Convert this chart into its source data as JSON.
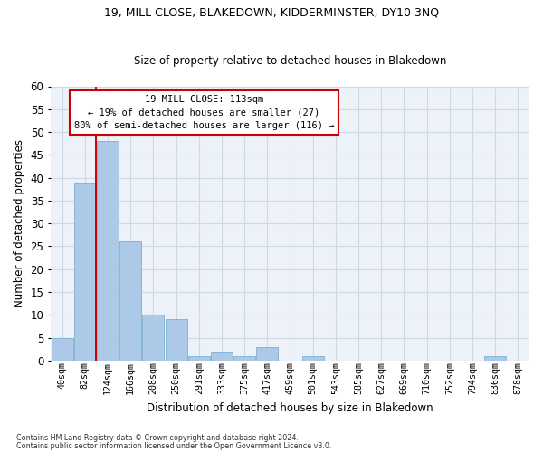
{
  "title1": "19, MILL CLOSE, BLAKEDOWN, KIDDERMINSTER, DY10 3NQ",
  "title2": "Size of property relative to detached houses in Blakedown",
  "xlabel": "Distribution of detached houses by size in Blakedown",
  "ylabel": "Number of detached properties",
  "bin_labels": [
    "40sqm",
    "82sqm",
    "124sqm",
    "166sqm",
    "208sqm",
    "250sqm",
    "291sqm",
    "333sqm",
    "375sqm",
    "417sqm",
    "459sqm",
    "501sqm",
    "543sqm",
    "585sqm",
    "627sqm",
    "669sqm",
    "710sqm",
    "752sqm",
    "794sqm",
    "836sqm",
    "878sqm"
  ],
  "bar_values": [
    5,
    39,
    48,
    26,
    10,
    9,
    1,
    2,
    1,
    3,
    0,
    1,
    0,
    0,
    0,
    0,
    0,
    0,
    0,
    1,
    0
  ],
  "bar_color": "#adc9e8",
  "bar_edge_color": "#7aafd4",
  "annotation_text": "19 MILL CLOSE: 113sqm\n← 19% of detached houses are smaller (27)\n80% of semi-detached houses are larger (116) →",
  "annotation_box_color": "#ffffff",
  "annotation_box_edge_color": "#cc0000",
  "footnote1": "Contains HM Land Registry data © Crown copyright and database right 2024.",
  "footnote2": "Contains public sector information licensed under the Open Government Licence v3.0.",
  "grid_color": "#d0d8e8",
  "background_color": "#edf2f9",
  "ylim": [
    0,
    60
  ],
  "yticks": [
    0,
    5,
    10,
    15,
    20,
    25,
    30,
    35,
    40,
    45,
    50,
    55,
    60
  ],
  "red_line_x": 1.5
}
